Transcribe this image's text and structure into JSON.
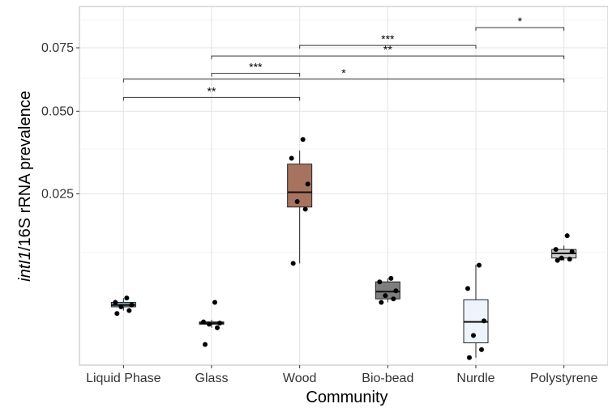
{
  "chart_data": {
    "type": "box",
    "xlabel": "Community",
    "ylabel_italic": "intI1",
    "ylabel_rest": "/16S rRNA prevalence",
    "y_scale": "sqrt",
    "ylim": [
      0.0005,
      0.094
    ],
    "y_ticks": [
      0.025,
      0.05,
      0.075
    ],
    "y_tick_labels": [
      "0.025",
      "0.050",
      "0.075"
    ],
    "categories": [
      "Liquid Phase",
      "Glass",
      "Wood",
      "Bio-bead",
      "Nurdle",
      "Polystyrene"
    ],
    "grid": true,
    "legend": "none",
    "boxes": [
      {
        "category": "Liquid Phase",
        "fill": "#76a3a8",
        "min": 0.0043,
        "q1": 0.0047,
        "median": 0.0049,
        "q3": 0.0052,
        "max": 0.0057,
        "points": [
          0.004,
          0.0043,
          0.0047,
          0.0049,
          0.0052,
          0.0057
        ]
      },
      {
        "category": "Glass",
        "fill": "#b2dfe7",
        "min": 0.0027,
        "q1": 0.003,
        "median": 0.0031,
        "q3": 0.0032,
        "max": 0.0034,
        "points": [
          0.0015,
          0.0027,
          0.003,
          0.0031,
          0.0032,
          0.0052
        ]
      },
      {
        "category": "Wood",
        "fill": "#a7735f",
        "min": 0.0106,
        "q1": 0.0218,
        "median": 0.0254,
        "q3": 0.033,
        "max": 0.037,
        "points": [
          0.0106,
          0.0213,
          0.0231,
          0.0275,
          0.0347,
          0.0405
        ]
      },
      {
        "category": "Bio-bead",
        "fill": "#7e7e7e",
        "min": 0.0052,
        "q1": 0.0056,
        "median": 0.0065,
        "q3": 0.0078,
        "max": 0.0083,
        "points": [
          0.0052,
          0.0056,
          0.006,
          0.0066,
          0.0078,
          0.0083
        ]
      },
      {
        "category": "Nurdle",
        "fill": "#eef4fc",
        "min": 0.0008,
        "q1": 0.0016,
        "median": 0.0032,
        "q3": 0.0055,
        "max": 0.0104,
        "points": [
          0.0008,
          0.0012,
          0.0021,
          0.0033,
          0.0069,
          0.0103
        ]
      },
      {
        "category": "Polystyrene",
        "fill": "#cfcfcf",
        "min": 0.011,
        "q1": 0.0115,
        "median": 0.0123,
        "q3": 0.013,
        "max": 0.0137,
        "points": [
          0.0111,
          0.0113,
          0.0115,
          0.0126,
          0.013,
          0.0156
        ]
      }
    ],
    "significance": [
      {
        "from": "Nurdle",
        "to": "Polystyrene",
        "y": 0.084,
        "label": "*"
      },
      {
        "from": "Wood",
        "to": "Nurdle",
        "y": 0.076,
        "label": "***"
      },
      {
        "from": "Glass",
        "to": "Polystyrene",
        "y": 0.0715,
        "label": "**"
      },
      {
        "from": "Glass",
        "to": "Wood",
        "y": 0.0643,
        "label": "***"
      },
      {
        "from": "Liquid Phase",
        "to": "Polystyrene",
        "y": 0.062,
        "label": "*"
      },
      {
        "from": "Liquid Phase",
        "to": "Wood",
        "y": 0.055,
        "label": "**"
      }
    ]
  }
}
